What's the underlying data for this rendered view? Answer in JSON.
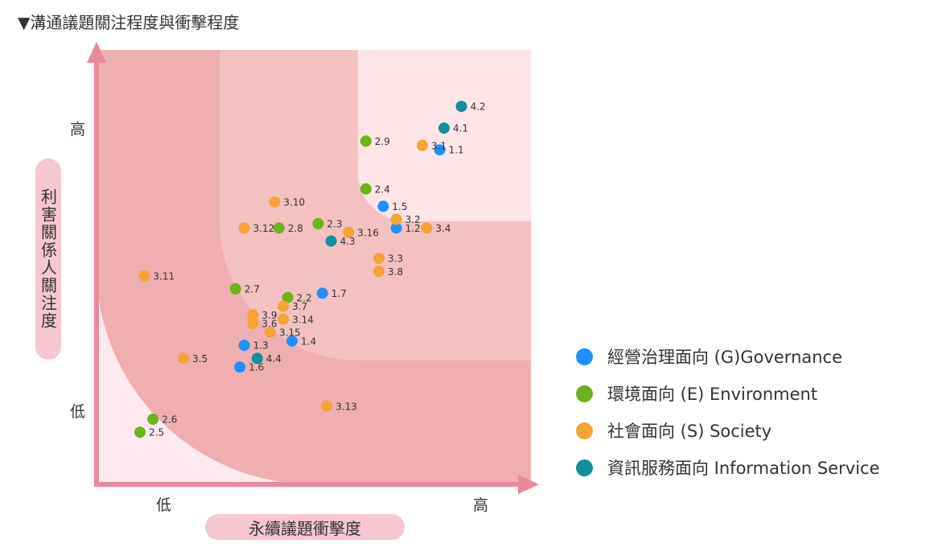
{
  "title": "▼溝通議題關注程度與衝擊程度",
  "y_axis_label": "利害關係人關注度",
  "x_axis_label": "永續議題衝擊度",
  "y_ticks": {
    "high": "高",
    "low": "低"
  },
  "x_ticks": {
    "low": "低",
    "high": "高"
  },
  "legend": [
    {
      "label": "經營治理面向 (G)Governance",
      "color": "#1e90ff"
    },
    {
      "label": "環境面向 (E) Environment",
      "color": "#6cb31c"
    },
    {
      "label": "社會面向 (S) Society",
      "color": "#f7a234"
    },
    {
      "label": "資訊服務面向  Information Service",
      "color": "#128f9c"
    }
  ],
  "chart_data": {
    "type": "scatter",
    "x_label": "永續議題衝擊度",
    "y_label": "利害關係人關注度",
    "xlim": [
      0,
      10
    ],
    "ylim": [
      0,
      10
    ],
    "series": [
      {
        "name": "經營治理面向 (G)Governance",
        "color": "#1e90ff",
        "points": [
          {
            "label": "1.1",
            "x": 7.9,
            "y": 7.7
          },
          {
            "label": "1.5",
            "x": 6.6,
            "y": 6.4
          },
          {
            "label": "1.2",
            "x": 6.9,
            "y": 5.9
          },
          {
            "label": "1.7",
            "x": 5.2,
            "y": 4.4
          },
          {
            "label": "1.3",
            "x": 3.4,
            "y": 3.2
          },
          {
            "label": "1.4",
            "x": 4.5,
            "y": 3.3
          },
          {
            "label": "1.6",
            "x": 3.3,
            "y": 2.7
          }
        ]
      },
      {
        "name": "環境面向 (E) Environment",
        "color": "#6cb31c",
        "points": [
          {
            "label": "2.9",
            "x": 6.2,
            "y": 7.9
          },
          {
            "label": "2.4",
            "x": 6.2,
            "y": 6.8
          },
          {
            "label": "2.3",
            "x": 5.1,
            "y": 6.0
          },
          {
            "label": "2.8",
            "x": 4.2,
            "y": 5.9
          },
          {
            "label": "2.7",
            "x": 3.2,
            "y": 4.5
          },
          {
            "label": "2.2",
            "x": 4.4,
            "y": 4.3
          },
          {
            "label": "2.6",
            "x": 1.3,
            "y": 1.5
          },
          {
            "label": "2.5",
            "x": 1.0,
            "y": 1.2
          }
        ]
      },
      {
        "name": "社會面向 (S) Society",
        "color": "#f7a234",
        "points": [
          {
            "label": "3.1",
            "x": 7.5,
            "y": 7.8
          },
          {
            "label": "3.2",
            "x": 6.9,
            "y": 6.1
          },
          {
            "label": "3.4",
            "x": 7.6,
            "y": 5.9
          },
          {
            "label": "3.10",
            "x": 4.1,
            "y": 6.5
          },
          {
            "label": "3.12",
            "x": 3.4,
            "y": 5.9
          },
          {
            "label": "3.16",
            "x": 5.8,
            "y": 5.8
          },
          {
            "label": "3.3",
            "x": 6.5,
            "y": 5.2
          },
          {
            "label": "3.8",
            "x": 6.5,
            "y": 4.9
          },
          {
            "label": "3.11",
            "x": 1.1,
            "y": 4.8
          },
          {
            "label": "3.7",
            "x": 4.3,
            "y": 4.1
          },
          {
            "label": "3.9",
            "x": 3.6,
            "y": 3.9
          },
          {
            "label": "3.14",
            "x": 4.3,
            "y": 3.8
          },
          {
            "label": "3.6",
            "x": 3.6,
            "y": 3.7
          },
          {
            "label": "3.15",
            "x": 4.0,
            "y": 3.5
          },
          {
            "label": "3.5",
            "x": 2.0,
            "y": 2.9
          },
          {
            "label": "3.13",
            "x": 5.3,
            "y": 1.8
          }
        ]
      },
      {
        "name": "資訊服務面向  Information Service",
        "color": "#128f9c",
        "points": [
          {
            "label": "4.2",
            "x": 8.4,
            "y": 8.7
          },
          {
            "label": "4.1",
            "x": 8.0,
            "y": 8.2
          },
          {
            "label": "4.3",
            "x": 5.4,
            "y": 5.6
          },
          {
            "label": "4.4",
            "x": 3.7,
            "y": 2.9
          }
        ]
      }
    ]
  }
}
